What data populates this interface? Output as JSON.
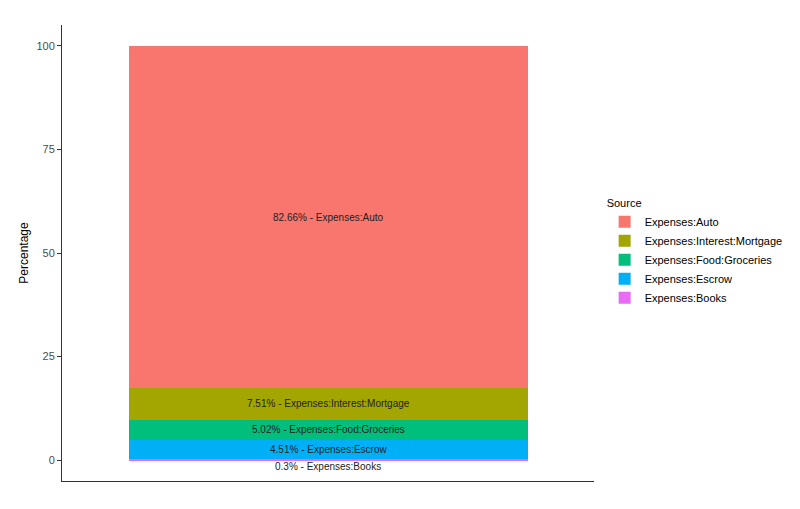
{
  "chart_data": {
    "type": "bar",
    "stacked": true,
    "y_label": "Percentage",
    "legend_title": "Source",
    "legend": "right",
    "categories": [
      null
    ],
    "series": [
      {
        "name": "Expenses:Books",
        "color": "#E76BF3",
        "values": [
          0.3
        ],
        "value_labels": [
          "0.3% - Expenses:Books"
        ]
      },
      {
        "name": "Expenses:Escrow",
        "color": "#00B0F6",
        "values": [
          4.51
        ],
        "value_labels": [
          "4.51% - Expenses:Escrow"
        ]
      },
      {
        "name": "Expenses:Food:Groceries",
        "color": "#00BF7D",
        "values": [
          5.02
        ],
        "value_labels": [
          "5.02% - Expenses:Food:Groceries"
        ]
      },
      {
        "name": "Expenses:Interest:Mortgage",
        "color": "#A3A500",
        "values": [
          7.51
        ],
        "value_labels": [
          "7.51% - Expenses:Interest:Mortgage"
        ]
      },
      {
        "name": "Expenses:Auto",
        "color": "#F8766D",
        "values": [
          82.66
        ],
        "value_labels": [
          "82.66% - Expenses:Auto"
        ]
      }
    ],
    "ylim": [
      -5,
      105
    ],
    "yticks": [
      0,
      25,
      50,
      75,
      100
    ],
    "grid": false,
    "data_labels": true,
    "tick_labels": "y"
  }
}
